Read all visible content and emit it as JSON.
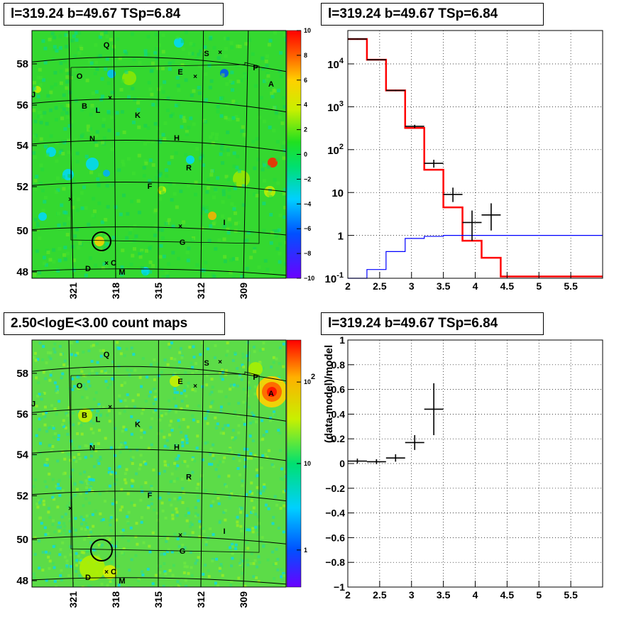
{
  "titles": {
    "map_top": "l=319.24 b=49.67 TSp=6.84",
    "spec_top": "l=319.24 b=49.67 TSp=6.84",
    "map_bottom": "2.50<logE<3.00 count maps",
    "resid_bottom": "l=319.24 b=49.67 TSp=6.84"
  },
  "source_labels": [
    "Q",
    "S",
    "O",
    "E",
    "P",
    "A",
    "J",
    "B",
    "L",
    "K",
    "N",
    "H",
    "R",
    "F",
    "I",
    "G",
    "D",
    "C",
    "M"
  ],
  "colors": {
    "data": "#000000",
    "model": "#ff0000",
    "background_component": "#0000ff",
    "grid": "#000000"
  },
  "chart_data": [
    {
      "type": "heatmap",
      "title": "l=319.24 b=49.67 TSp=6.84",
      "xlabel": "",
      "ylabel": "",
      "x_ticks": [
        "321",
        "318",
        "315",
        "312",
        "309"
      ],
      "y_ticks": [
        "48",
        "50",
        "52",
        "54",
        "56",
        "58"
      ],
      "colorbar": {
        "scale": "linear",
        "range": [
          -10,
          10
        ],
        "ticks": [
          "10",
          "8",
          "6",
          "4",
          "2",
          "0",
          "−2",
          "−4",
          "−6",
          "−8",
          "−10"
        ]
      },
      "marker": {
        "shape": "circle",
        "l": 319.24,
        "b": 49.67
      }
    },
    {
      "type": "line",
      "title": "l=319.24 b=49.67 TSp=6.84",
      "xlabel": "",
      "ylabel": "",
      "xlim": [
        2,
        6
      ],
      "ylim": [
        0.1,
        60000
      ],
      "yscale": "log",
      "x_ticks": [
        "2",
        "2.5",
        "3",
        "3.5",
        "4",
        "4.5",
        "5",
        "5.5"
      ],
      "y_ticks": [
        "10^-1",
        "1",
        "10",
        "10^2",
        "10^3",
        "10^4"
      ],
      "grid": true,
      "series": [
        {
          "style": "step",
          "color": "red",
          "edges": [
            2.0,
            2.3,
            2.6,
            2.9,
            3.2,
            3.5,
            3.8,
            4.1,
            4.4,
            6.0
          ],
          "values": [
            38000,
            12500,
            2400,
            320,
            34,
            4.5,
            0.75,
            0.3,
            0.11
          ]
        },
        {
          "style": "step",
          "color": "blue",
          "edges": [
            2.0,
            2.3,
            2.6,
            2.9,
            3.2,
            3.5,
            6.0
          ],
          "values": [
            0.1,
            0.16,
            0.42,
            0.85,
            0.95,
            1.0
          ]
        },
        {
          "style": "errorbar",
          "color": "black",
          "x": [
            2.15,
            2.45,
            2.75,
            3.05,
            3.35,
            3.65,
            3.95,
            4.25
          ],
          "xerr": 0.15,
          "y": [
            38000,
            12500,
            2400,
            350,
            48,
            9,
            2,
            3
          ],
          "ylo": [
            37000,
            12200,
            2320,
            320,
            38,
            6,
            0.75,
            1.3
          ],
          "yhi": [
            39000,
            12800,
            2480,
            380,
            58,
            13,
            3.8,
            5.6
          ]
        }
      ]
    },
    {
      "type": "heatmap",
      "title": "2.50<logE<3.00 count maps",
      "xlabel": "",
      "ylabel": "",
      "x_ticks": [
        "321",
        "318",
        "315",
        "312",
        "309"
      ],
      "y_ticks": [
        "48",
        "50",
        "52",
        "54",
        "56",
        "58"
      ],
      "colorbar": {
        "scale": "log",
        "ticks": [
          "10^2",
          "10",
          "1"
        ]
      },
      "marker": {
        "shape": "circle",
        "l": 319.24,
        "b": 49.67
      }
    },
    {
      "type": "scatter",
      "title": "l=319.24 b=49.67 TSp=6.84",
      "xlabel": "",
      "ylabel": "(data-model)/model",
      "xlim": [
        2,
        6
      ],
      "ylim": [
        -1,
        1
      ],
      "x_ticks": [
        "2",
        "2.5",
        "3",
        "3.5",
        "4",
        "4.5",
        "5",
        "5.5"
      ],
      "y_ticks": [
        "1",
        "0.8",
        "0.6",
        "0.4",
        "0.2",
        "0",
        "−0.2",
        "−0.4",
        "−0.6",
        "−0.8",
        "−1"
      ],
      "grid": true,
      "series": [
        {
          "style": "errorbar",
          "color": "black",
          "x": [
            2.15,
            2.45,
            2.75,
            3.05,
            3.35
          ],
          "xerr": 0.15,
          "y": [
            0.02,
            0.015,
            0.045,
            0.17,
            0.44
          ],
          "yerr": [
            0.02,
            0.02,
            0.03,
            0.06,
            0.21
          ]
        }
      ]
    }
  ]
}
